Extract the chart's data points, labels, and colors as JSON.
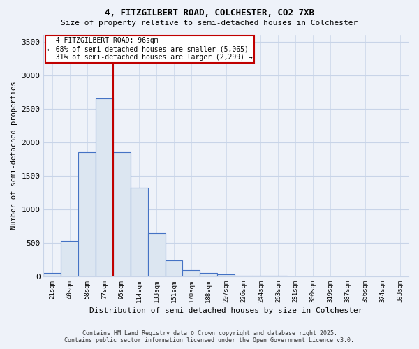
{
  "title1": "4, FITZGILBERT ROAD, COLCHESTER, CO2 7XB",
  "title2": "Size of property relative to semi-detached houses in Colchester",
  "xlabel": "Distribution of semi-detached houses by size in Colchester",
  "ylabel": "Number of semi-detached properties",
  "categories": [
    "21sqm",
    "40sqm",
    "58sqm",
    "77sqm",
    "95sqm",
    "114sqm",
    "133sqm",
    "151sqm",
    "170sqm",
    "188sqm",
    "207sqm",
    "226sqm",
    "244sqm",
    "263sqm",
    "281sqm",
    "300sqm",
    "319sqm",
    "337sqm",
    "356sqm",
    "374sqm",
    "393sqm"
  ],
  "values": [
    50,
    530,
    1850,
    2650,
    1850,
    1320,
    640,
    240,
    90,
    55,
    35,
    15,
    10,
    6,
    4,
    3,
    2,
    1,
    1,
    0,
    0
  ],
  "property_label": "4 FITZGILBERT ROAD: 96sqm",
  "pct_smaller": 68,
  "n_smaller": 5065,
  "pct_larger": 31,
  "n_larger": 2299,
  "marker_after_index": 3,
  "bar_fill_color": "#dce6f1",
  "bar_edge_color": "#4472c4",
  "marker_line_color": "#c00000",
  "box_edge_color": "#c00000",
  "ylim": [
    0,
    3600
  ],
  "yticks": [
    0,
    500,
    1000,
    1500,
    2000,
    2500,
    3000,
    3500
  ],
  "footnote1": "Contains HM Land Registry data © Crown copyright and database right 2025.",
  "footnote2": "Contains public sector information licensed under the Open Government Licence v3.0.",
  "bg_color": "#eef2f9",
  "grid_color": "#c8d4e8",
  "title_fontsize": 9,
  "subtitle_fontsize": 8
}
